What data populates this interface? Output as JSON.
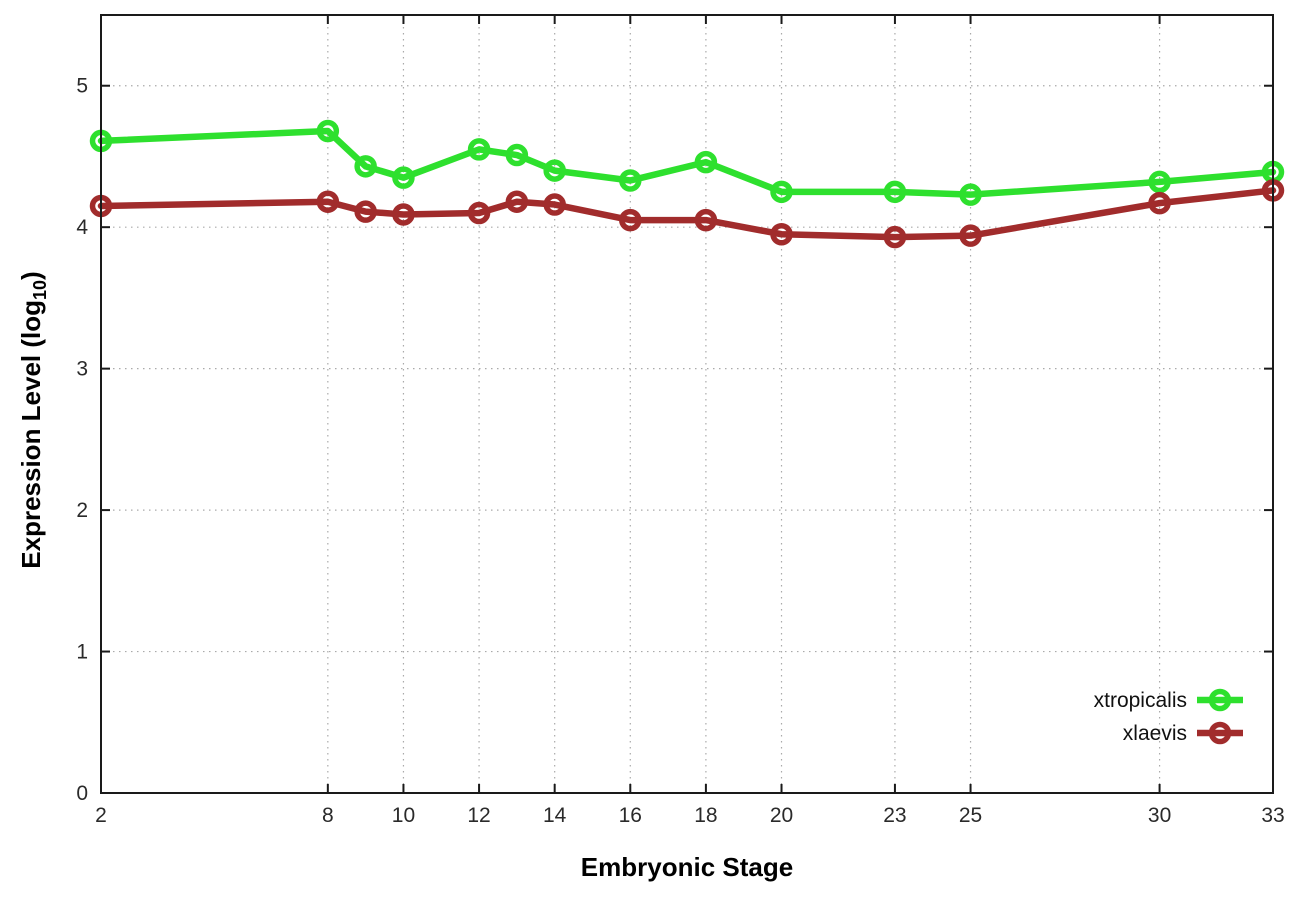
{
  "chart_data": {
    "type": "line",
    "title": "",
    "xlabel": "Embryonic Stage",
    "ylabel": {
      "pre": "Expression Level (log",
      "sub": "10",
      "post": ")"
    },
    "x_ticks": [
      2,
      8,
      10,
      12,
      14,
      16,
      18,
      20,
      23,
      25,
      30,
      33
    ],
    "y_ticks": [
      0,
      1,
      2,
      3,
      4,
      5
    ],
    "xlim": [
      2,
      33
    ],
    "ylim": [
      0,
      5.5
    ],
    "grid": true,
    "legend_position": "bottom-right",
    "x": [
      2,
      8,
      9,
      10,
      12,
      13,
      14,
      16,
      18,
      20,
      23,
      25,
      30,
      33
    ],
    "series": [
      {
        "name": "xtropicalis",
        "color": "#2ee02e",
        "values": [
          4.61,
          4.68,
          4.43,
          4.35,
          4.55,
          4.51,
          4.4,
          4.33,
          4.46,
          4.25,
          4.25,
          4.23,
          4.32,
          4.39
        ]
      },
      {
        "name": "xlaevis",
        "color": "#a12c2c",
        "values": [
          4.15,
          4.18,
          4.11,
          4.09,
          4.1,
          4.18,
          4.16,
          4.05,
          4.05,
          3.95,
          3.93,
          3.94,
          4.17,
          4.26
        ]
      }
    ],
    "axis_color": "#1a1a1a",
    "grid_color": "#aaaaaa"
  }
}
